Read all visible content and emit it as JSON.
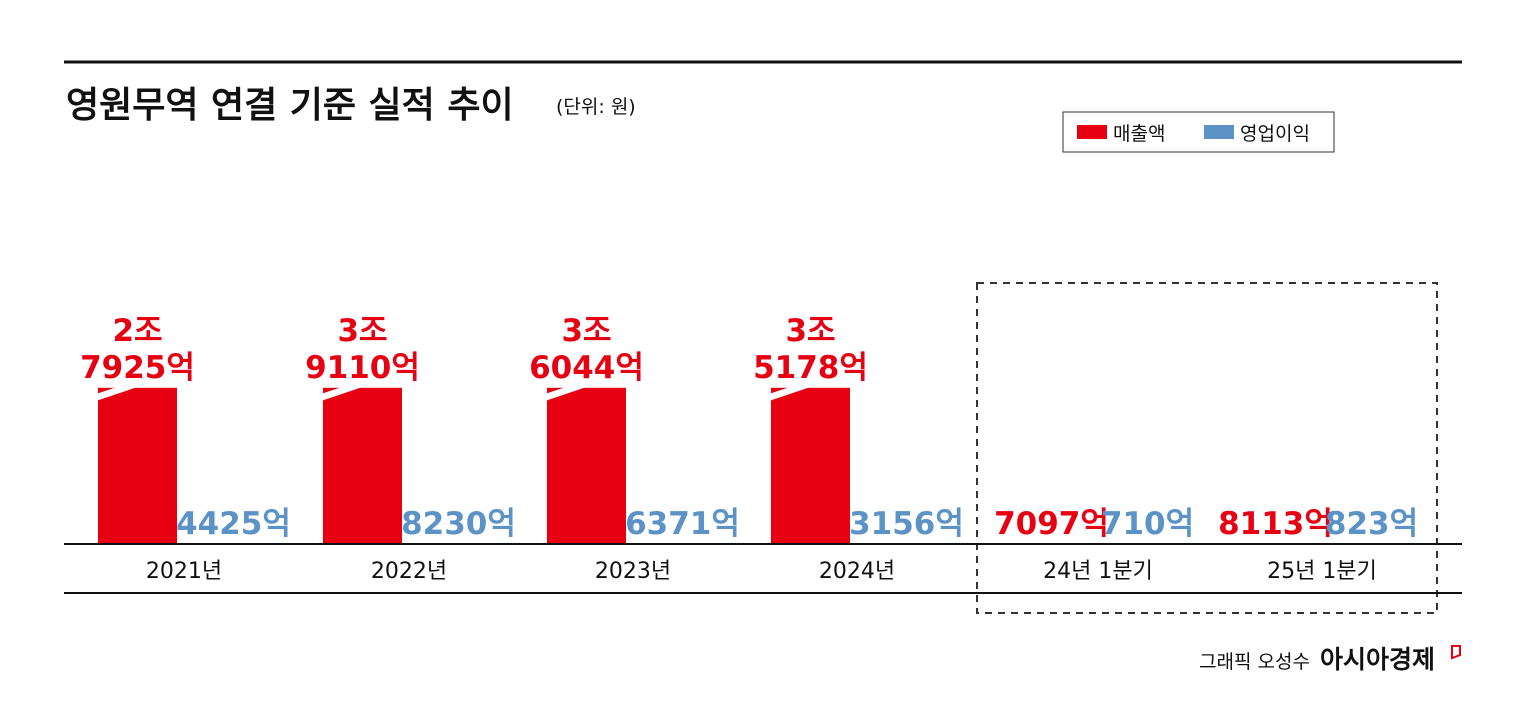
{
  "chart_data": {
    "type": "bar",
    "title": "영원무역 연결 기준 실적 추이",
    "unit": "(단위: 원)",
    "categories": [
      "2021년",
      "2022년",
      "2023년",
      "2024년",
      "24년 1분기",
      "25년 1분기"
    ],
    "series": [
      {
        "name": "매출액",
        "color": "#e60012",
        "values": [
          2792500000000,
          3911000000000,
          3604400000000,
          3517800000000,
          709700000000,
          811300000000
        ],
        "labels": [
          [
            "2조",
            "7925억"
          ],
          [
            "3조",
            "9110억"
          ],
          [
            "3조",
            "6044억"
          ],
          [
            "3조",
            "5178억"
          ],
          [
            "7097억"
          ],
          [
            "8113억"
          ]
        ]
      },
      {
        "name": "영업이익",
        "color": "#5b93c7",
        "values": [
          442500000000,
          823000000000,
          637100000000,
          315600000000,
          71000000000,
          82300000000
        ],
        "labels": [
          [
            "4425억"
          ],
          [
            "8230억"
          ],
          [
            "6371억"
          ],
          [
            "3156억"
          ],
          [
            "710억"
          ],
          [
            "823억"
          ]
        ]
      }
    ],
    "axis_break": "매출액 annual bars shown with broken axis",
    "highlight_group": [
      "24년 1분기",
      "25년 1분기"
    ],
    "legend_position": "top-right",
    "grid": false
  },
  "credit": {
    "author": "그래픽 오성수",
    "brand": "아시아경제"
  }
}
